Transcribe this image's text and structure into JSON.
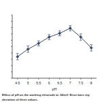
{
  "chart_data": {
    "type": "line",
    "title": "Effect of pH on the working electrode at -50mV. Error bars rep",
    "subtitle": "deviation of three values.",
    "x_label": "pH",
    "categories": [
      "4.5",
      "5",
      "5.5",
      "6",
      "6.5",
      "7",
      "7.5",
      "8"
    ],
    "values": [
      34,
      46,
      55,
      65,
      71,
      79,
      65,
      48
    ],
    "errors": [
      5,
      5,
      4,
      4,
      4,
      4,
      5,
      5
    ],
    "color": "#3b4a6b",
    "marker": "diamond",
    "ylim": [
      0,
      100
    ],
    "yticks": [
      0,
      10,
      20,
      30,
      40,
      50,
      60,
      70,
      80,
      90,
      100
    ],
    "tick_labels": "x",
    "grid": false
  }
}
